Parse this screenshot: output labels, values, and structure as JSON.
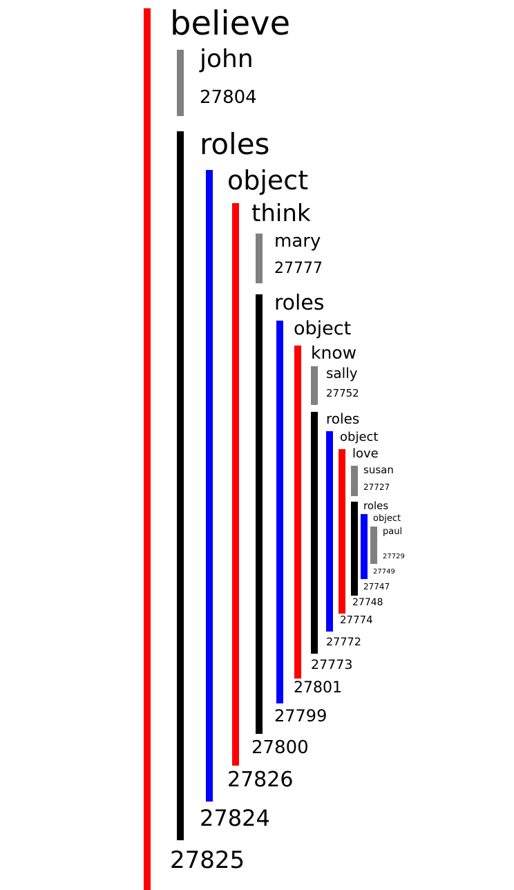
{
  "colors": {
    "predicate": "#ff0000",
    "entity": "#808080",
    "roles": "#000000",
    "object": "#0000ff"
  },
  "tree": {
    "believe": {
      "label": "believe",
      "id": "27825"
    },
    "john": {
      "label": "john",
      "id": "27804"
    },
    "roles1": {
      "label": "roles",
      "id": "27824"
    },
    "object1": {
      "label": "object",
      "id": "27826"
    },
    "think": {
      "label": "think",
      "id": "27800"
    },
    "mary": {
      "label": "mary",
      "id": "27777"
    },
    "roles2": {
      "label": "roles",
      "id": "27799"
    },
    "object2": {
      "label": "object",
      "id": "27801"
    },
    "know": {
      "label": "know",
      "id": "27773"
    },
    "sally": {
      "label": "sally",
      "id": "27752"
    },
    "roles3": {
      "label": "roles",
      "id": "27772"
    },
    "object3": {
      "label": "object",
      "id": "27774"
    },
    "love": {
      "label": "love",
      "id": "27748"
    },
    "susan": {
      "label": "susan",
      "id": "27727"
    },
    "roles4": {
      "label": "roles",
      "id": "27747"
    },
    "object4": {
      "label": "object",
      "id": "27749"
    },
    "paul": {
      "label": "paul",
      "id": "27729"
    }
  }
}
